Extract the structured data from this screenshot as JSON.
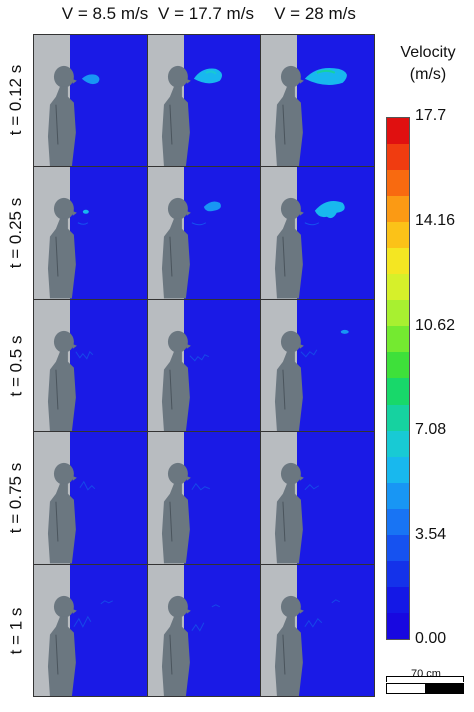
{
  "columns": [
    {
      "label": "V = 8.5 m/s"
    },
    {
      "label": "V = 17.7 m/s"
    },
    {
      "label": "V = 28 m/s"
    }
  ],
  "rows": [
    {
      "label": "t = 0.12 s"
    },
    {
      "label": "t = 0.25 s"
    },
    {
      "label": "t = 0.5 s"
    },
    {
      "label": "t = 0.75 s"
    },
    {
      "label": "t = 1 s"
    }
  ],
  "colorbar": {
    "title_line1": "Velocity",
    "title_line2": "(m/s)",
    "ticks": [
      "17.7",
      "14.16",
      "10.62",
      "7.08",
      "3.54",
      "0.00"
    ],
    "colors": [
      "#e01010",
      "#f03c10",
      "#f86a10",
      "#fb9a14",
      "#fbc218",
      "#f4e622",
      "#d6f02a",
      "#a8f030",
      "#74ea30",
      "#3ee03a",
      "#18d86a",
      "#16d2a0",
      "#18cad4",
      "#18b8ee",
      "#1896f4",
      "#1874f4",
      "#1652f0",
      "#1432ea",
      "#1418e6",
      "#1808e0"
    ]
  },
  "scale_bar": {
    "label": "70 cm"
  },
  "colors": {
    "domain_background": "#1a1ae6",
    "wall": "#b8bcc0",
    "manikin": "#6b7780"
  }
}
